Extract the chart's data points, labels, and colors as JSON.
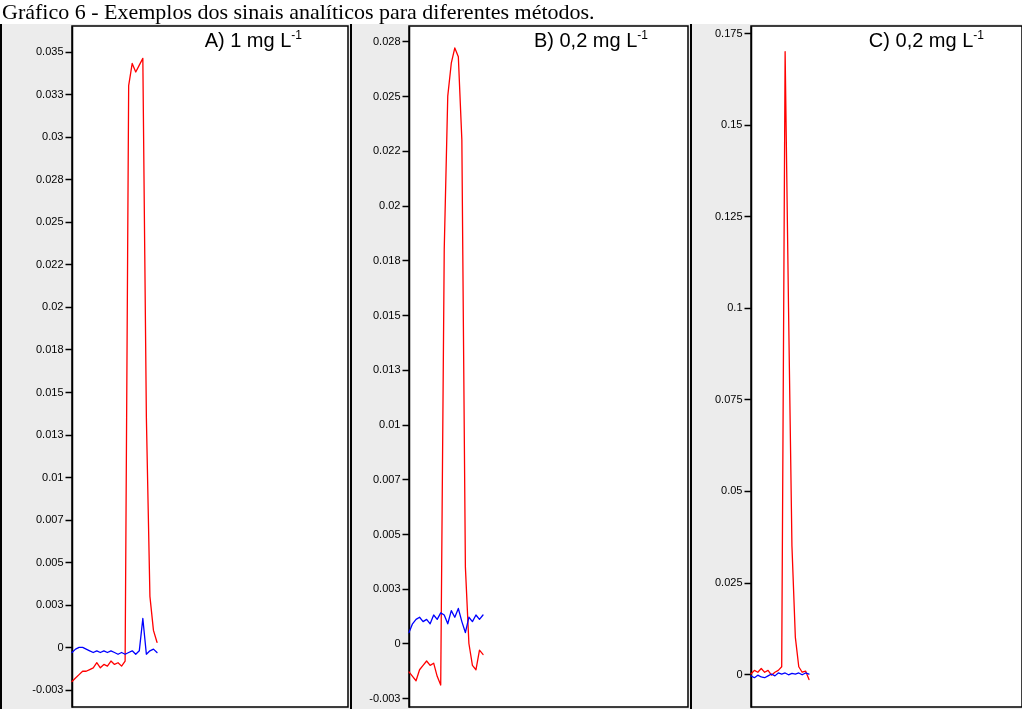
{
  "chart_data": [
    {
      "type": "line",
      "title": "Gráfico 6 - Exemplos dos sinais analíticos para diferentes métodos.",
      "annotations": [
        "A) 1 mg L$^{-1}$"
      ],
      "categories": [
        null,
        null,
        null,
        null,
        null,
        null,
        null,
        null,
        null,
        null,
        null,
        null,
        null,
        null,
        null,
        null,
        null,
        null,
        null,
        null,
        null,
        null,
        null,
        null,
        null
      ],
      "series": [
        {
          "color": "#ff0000",
          "values": [
            -0.002,
            -0.0018,
            -0.0016,
            -0.0014,
            -0.0014,
            -0.0013,
            -0.0012,
            -0.0009,
            -0.0012,
            -0.001,
            -0.0011,
            -0.0008,
            -0.001,
            -0.0009,
            -0.0011,
            -0.0008,
            0.033,
            0.0343,
            0.0338,
            0.0342,
            0.0346,
            0.0135,
            0.003,
            0.001,
            0.0003
          ]
        },
        {
          "color": "#0000ff",
          "values": [
            -0.0003,
            -0.0001,
            0.0,
            0.0,
            -0.0001,
            -0.0002,
            -0.0003,
            -0.0002,
            -0.0003,
            -0.0002,
            -0.0003,
            -0.0002,
            -0.0003,
            -0.0004,
            -0.0003,
            -0.0004,
            -0.0003,
            -0.0002,
            -0.0004,
            -0.0002,
            0.0017,
            -0.0004,
            -0.0002,
            -0.0001,
            -0.0003
          ]
        }
      ],
      "ylim": [
        -0.0035,
        0.0365
      ],
      "yticks": [
        {
          "value": -0.0025,
          "label": "-0.003"
        },
        0.0,
        {
          "value": 0.0025,
          "label": "0.003"
        },
        0.005,
        {
          "value": 0.0075,
          "label": "0.007"
        },
        0.01,
        {
          "value": 0.0125,
          "label": "0.013"
        },
        0.015,
        {
          "value": 0.0175,
          "label": "0.018"
        },
        0.02,
        {
          "value": 0.0225,
          "label": "0.022"
        },
        0.025,
        {
          "value": 0.0275,
          "label": "0.028"
        },
        0.03,
        {
          "value": 0.0325,
          "label": "0.033"
        },
        0.035
      ]
    },
    {
      "type": "line",
      "annotations": [
        "B) 0,2 mg L$^{-1}$"
      ],
      "categories": [
        null,
        null,
        null,
        null,
        null,
        null,
        null,
        null,
        null,
        null,
        null,
        null,
        null,
        null,
        null,
        null,
        null,
        null,
        null,
        null,
        null,
        null
      ],
      "series": [
        {
          "color": "#ff0000",
          "values": [
            -0.0013,
            -0.0015,
            -0.0017,
            -0.0012,
            -0.001,
            -0.0008,
            -0.001,
            -0.0009,
            -0.0015,
            -0.0019,
            0.018,
            0.025,
            0.0265,
            0.0272,
            0.0268,
            0.023,
            0.0035,
            0.0,
            -0.001,
            -0.0012,
            -0.0003,
            -0.0005
          ]
        },
        {
          "color": "#0000ff",
          "values": [
            0.0005,
            0.0009,
            0.0011,
            0.0012,
            0.001,
            0.0011,
            0.0009,
            0.0013,
            0.0011,
            0.0014,
            0.0013,
            0.0009,
            0.0015,
            0.0012,
            0.0016,
            0.001,
            0.0005,
            0.0012,
            0.001,
            0.0013,
            0.0011,
            0.0013
          ]
        }
      ],
      "ylim": [
        -0.0029,
        0.0282
      ],
      "yticks": [
        {
          "value": -0.0025,
          "label": "-0.003"
        },
        0.0,
        {
          "value": 0.0025,
          "label": "0.003"
        },
        0.005,
        {
          "value": 0.0075,
          "label": "0.007"
        },
        0.01,
        {
          "value": 0.0125,
          "label": "0.013"
        },
        0.015,
        {
          "value": 0.0175,
          "label": "0.018"
        },
        0.02,
        {
          "value": 0.0225,
          "label": "0.022"
        },
        0.025,
        {
          "value": 0.0275,
          "label": "0.028"
        }
      ]
    },
    {
      "type": "line",
      "annotations": [
        "C) 0,2 mg L$^{-1}$"
      ],
      "categories": [
        null,
        null,
        null,
        null,
        null,
        null,
        null,
        null,
        null,
        null,
        null,
        null,
        null,
        null,
        null,
        null,
        null,
        null
      ],
      "series": [
        {
          "color": "#ff0000",
          "values": [
            0.0,
            0.001,
            0.0005,
            0.0015,
            0.0005,
            0.001,
            -0.0003,
            0.0005,
            0.001,
            0.002,
            0.17,
            0.1,
            0.035,
            0.01,
            0.002,
            0.0005,
            0.0008,
            -0.0015
          ]
        },
        {
          "color": "#0000ff",
          "values": [
            -0.0005,
            -0.001,
            -0.0003,
            -0.0008,
            -0.001,
            -0.0005,
            0.0,
            -0.0005,
            0.0003,
            0.0,
            0.0003,
            -0.0002,
            0.0002,
            0.0,
            0.0003,
            -0.0002,
            0.0003,
            0.0
          ]
        }
      ],
      "ylim": [
        -0.009,
        0.177
      ],
      "yticks": [
        0.0,
        0.025,
        0.05,
        0.075,
        0.1,
        0.125,
        0.15,
        0.175
      ]
    }
  ]
}
